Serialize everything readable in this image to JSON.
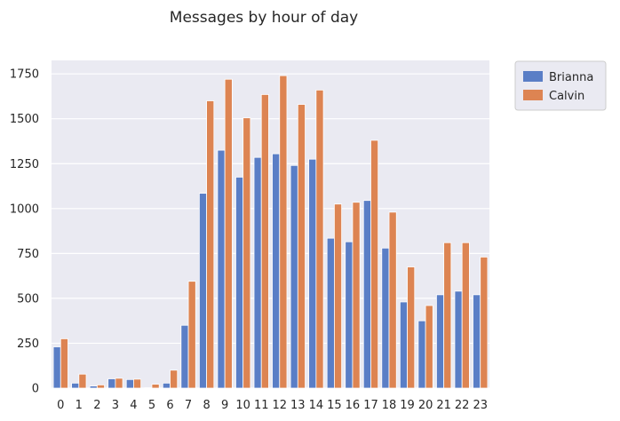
{
  "chart_data": {
    "type": "bar",
    "title": "Messages by hour of day",
    "xlabel": "",
    "ylabel": "",
    "categories": [
      "0",
      "1",
      "2",
      "3",
      "4",
      "5",
      "6",
      "7",
      "8",
      "9",
      "10",
      "11",
      "12",
      "13",
      "14",
      "15",
      "16",
      "17",
      "18",
      "19",
      "20",
      "21",
      "22",
      "23"
    ],
    "series": [
      {
        "name": "Brianna",
        "color": "#5a7ec6",
        "values": [
          230,
          28,
          12,
          52,
          48,
          2,
          28,
          350,
          1085,
          1325,
          1175,
          1285,
          1305,
          1240,
          1275,
          835,
          815,
          1045,
          780,
          480,
          375,
          520,
          540,
          520
        ]
      },
      {
        "name": "Calvin",
        "color": "#dd8452",
        "values": [
          275,
          78,
          18,
          55,
          50,
          22,
          100,
          595,
          1600,
          1720,
          1505,
          1635,
          1740,
          1580,
          1660,
          1025,
          1035,
          1380,
          980,
          675,
          460,
          810,
          810,
          730
        ]
      }
    ],
    "yticks": [
      "0",
      "250",
      "500",
      "750",
      "1000",
      "1250",
      "1500",
      "1750"
    ],
    "ylim": [
      0,
      1825
    ],
    "grid": true,
    "legend_position": "outside-top-right"
  }
}
